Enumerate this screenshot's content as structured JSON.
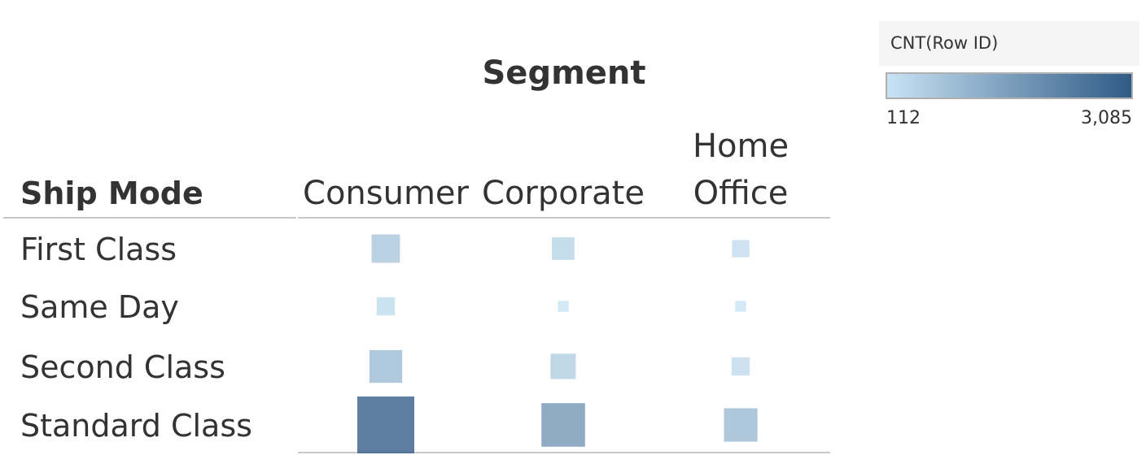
{
  "chart_data": {
    "type": "heatmap",
    "column_field": "Segment",
    "row_field": "Ship Mode",
    "columns": [
      "Consumer",
      "Corporate",
      "Home\nOffice"
    ],
    "rows": [
      "First Class",
      "Same Day",
      "Second Class",
      "Standard Class"
    ],
    "values": [
      [
        769,
        484,
        285
      ],
      [
        317,
        114,
        112
      ],
      [
        1020,
        609,
        316
      ],
      [
        3085,
        1812,
        1063
      ]
    ],
    "measure": "CNT(Row ID)",
    "encoding": "size and color",
    "legend": {
      "title": "CNT(Row ID)",
      "min_label": "112",
      "max_label": "3,085",
      "min": 112,
      "max": 3085,
      "color_low": "#c8e3f4",
      "color_high": "#2f5a86",
      "placement": "top-right"
    }
  }
}
